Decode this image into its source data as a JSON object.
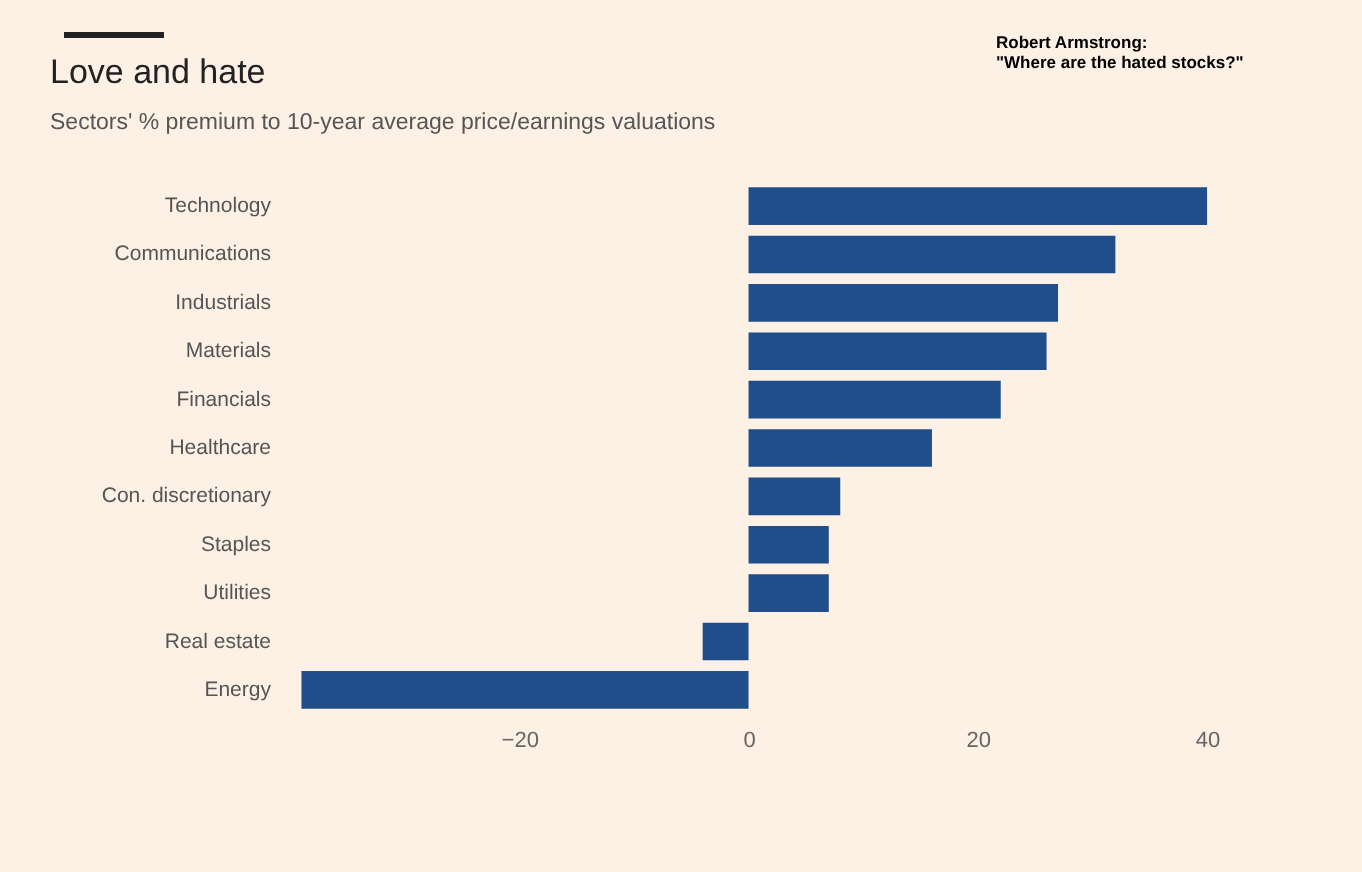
{
  "chart_data": {
    "type": "bar",
    "orientation": "horizontal",
    "title": "Love and hate",
    "subtitle": "Sectors' % premium to 10-year average price/earnings valuations",
    "annotations": [
      "Robert Armstrong:",
      "\"Where are the hated stocks?\""
    ],
    "categories": [
      "Technology",
      "Communications",
      "Industrials",
      "Materials",
      "Financials",
      "Healthcare",
      "Con. discretionary",
      "Staples",
      "Utilities",
      "Real estate",
      "Energy"
    ],
    "values": [
      40,
      32,
      27,
      26,
      22,
      16,
      8,
      7,
      7,
      -4,
      -39
    ],
    "color": "#1f4e8a",
    "xlim": [
      -40,
      42
    ],
    "xticks": [
      -20,
      0,
      20,
      40
    ],
    "grid": false
  }
}
